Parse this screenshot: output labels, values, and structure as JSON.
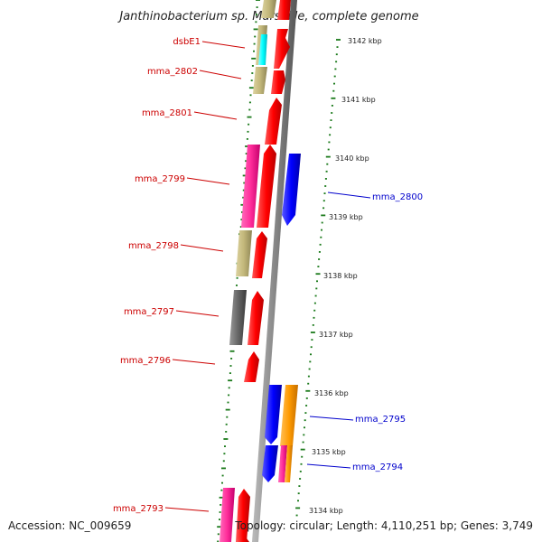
{
  "title": "Janthinobacterium sp. Marseille, complete genome",
  "footer": {
    "accession": "Accession: NC_009659",
    "summary": "Topology: circular; Length: 4,110,251 bp; Genes: 3,749"
  },
  "colors": {
    "backbone": "#888888",
    "tick": "#1b7a1b",
    "forward_label": "#cc0000",
    "reverse_label": "#0000cc",
    "red": "#ff0000",
    "khaki": "#c2b77a",
    "pink": "#ff2d9a",
    "cyan": "#00ffff",
    "gray": "#666666",
    "blue": "#0000ff",
    "orange": "#ff9a00"
  },
  "kbp_labels": [
    "3142 kbp",
    "3141 kbp",
    "3140 kbp",
    "3139 kbp",
    "3138 kbp",
    "3137 kbp",
    "3136 kbp",
    "3135 kbp",
    "3134 kbp"
  ],
  "forward_gene_labels": [
    "dsbE1",
    "mma_2802",
    "mma_2801",
    "mma_2799",
    "mma_2798",
    "mma_2797",
    "mma_2796",
    "mma_2793"
  ],
  "reverse_gene_labels": [
    "mma_2800",
    "mma_2795",
    "mma_2794"
  ]
}
